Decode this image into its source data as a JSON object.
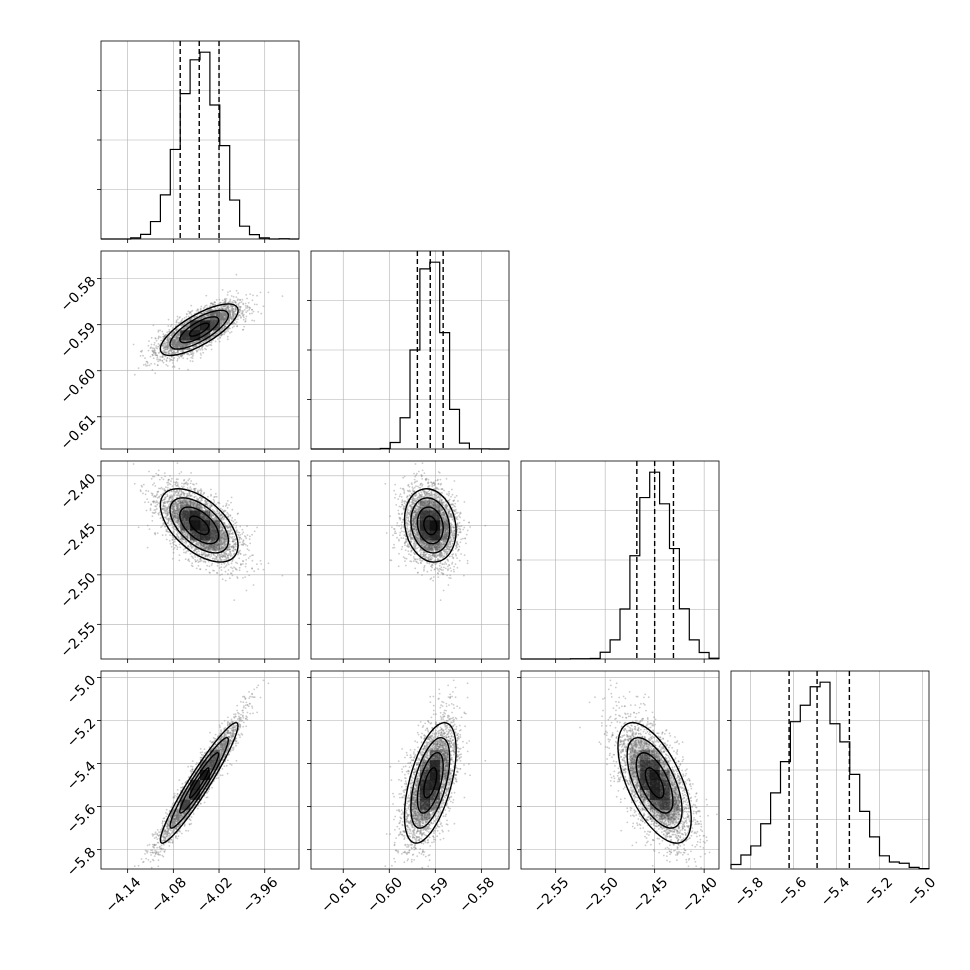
{
  "chart_data": {
    "type": "corner",
    "title": "",
    "parameters": [
      {
        "index": 0,
        "range": [
          -4.175,
          -3.915
        ],
        "ticks": [
          -4.14,
          -4.08,
          -4.02,
          -3.96
        ],
        "tick_labels": [
          "−4.14",
          "−4.08",
          "−4.02",
          "−3.96"
        ],
        "quantiles": [
          -4.071,
          -4.046,
          -4.02
        ],
        "mean": -4.046,
        "sd": 0.0255
      },
      {
        "index": 1,
        "range": [
          -0.617,
          -0.574
        ],
        "ticks": [
          -0.61,
          -0.6,
          -0.59,
          -0.58
        ],
        "tick_labels": [
          "−0.61",
          "−0.60",
          "−0.59",
          "−0.58"
        ],
        "quantiles": [
          -0.5939,
          -0.5911,
          -0.5883
        ],
        "mean": -0.5911,
        "sd": 0.0028
      },
      {
        "index": 2,
        "range": [
          -2.585,
          -2.385
        ],
        "ticks": [
          -2.55,
          -2.5,
          -2.45,
          -2.4
        ],
        "tick_labels": [
          "−2.55",
          "−2.50",
          "−2.45",
          "−2.40"
        ],
        "quantiles": [
          -2.468,
          -2.45,
          -2.431
        ],
        "mean": -2.45,
        "sd": 0.0185
      },
      {
        "index": 3,
        "range": [
          -5.89,
          -4.97
        ],
        "ticks": [
          -5.8,
          -5.6,
          -5.4,
          -5.2,
          -5.0
        ],
        "tick_labels": [
          "−5.8",
          "−5.6",
          "−5.4",
          "−5.2",
          "−5.0"
        ],
        "quantiles": [
          -5.62,
          -5.49,
          -5.34
        ],
        "mean": -5.49,
        "sd": 0.14
      }
    ],
    "correlations": [
      [
        1.0,
        0.75,
        -0.55,
        0.95
      ],
      [
        0.75,
        1.0,
        -0.15,
        0.55
      ],
      [
        -0.55,
        -0.15,
        1.0,
        -0.6
      ],
      [
        0.95,
        0.55,
        -0.6,
        1.0
      ]
    ],
    "histogram_bins": 20,
    "contour_levels": 3,
    "grid": true,
    "colors": {
      "line": "#000000",
      "points": "#8c8c8c",
      "grid": "#b0b0b0",
      "density": "#000000"
    }
  }
}
